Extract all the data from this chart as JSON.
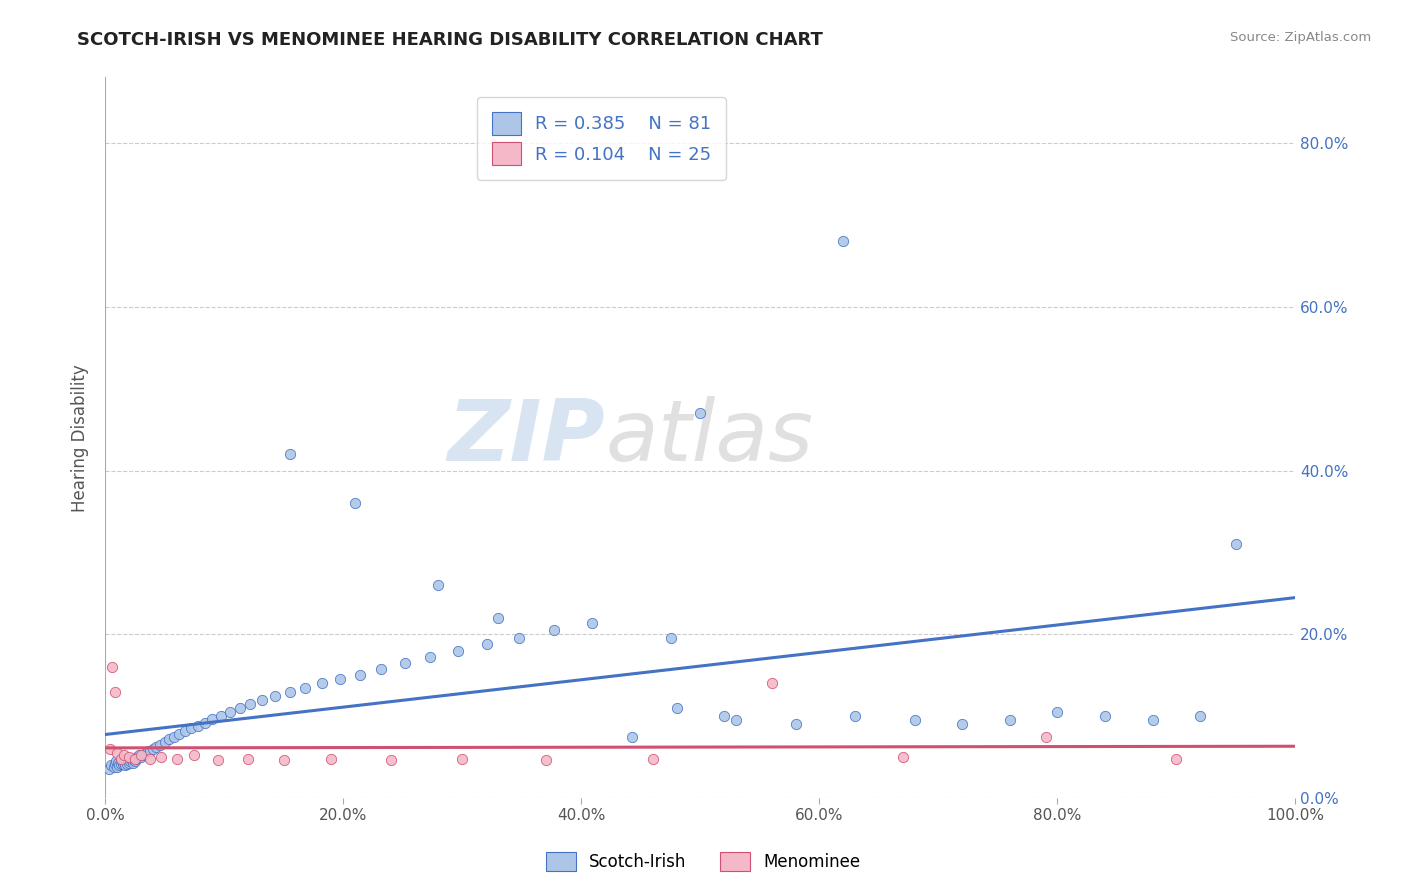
{
  "title": "SCOTCH-IRISH VS MENOMINEE HEARING DISABILITY CORRELATION CHART",
  "source": "Source: ZipAtlas.com",
  "ylabel": "Hearing Disability",
  "xlim": [
    0.0,
    1.0
  ],
  "ylim": [
    0.0,
    0.88
  ],
  "yticks": [
    0.0,
    0.2,
    0.4,
    0.6,
    0.8
  ],
  "ytick_labels_right": [
    "0.0%",
    "20.0%",
    "40.0%",
    "60.0%",
    "80.0%"
  ],
  "xticks": [
    0.0,
    0.2,
    0.4,
    0.6,
    0.8,
    1.0
  ],
  "xtick_labels": [
    "0.0%",
    "20.0%",
    "40.0%",
    "60.0%",
    "80.0%",
    "100.0%"
  ],
  "scotch_irish_color": "#adc6e8",
  "scotch_irish_edge_color": "#4472c4",
  "scotch_irish_line_color": "#4472c4",
  "menominee_color": "#f4b8c8",
  "menominee_edge_color": "#d05070",
  "menominee_line_color": "#d05070",
  "scotch_irish_R": 0.385,
  "scotch_irish_N": 81,
  "menominee_R": 0.104,
  "menominee_N": 25,
  "watermark_zip": "ZIP",
  "watermark_atlas": "atlas",
  "background_color": "#ffffff",
  "grid_color": "#cccccc",
  "title_color": "#222222",
  "source_color": "#888888",
  "right_axis_color": "#4472c4",
  "ylabel_color": "#555555",
  "xtick_color": "#555555",
  "legend_label_color": "#4472c4",
  "bottom_legend_labels": [
    "Scotch-Irish",
    "Menominee"
  ],
  "si_x": [
    0.003,
    0.005,
    0.007,
    0.008,
    0.009,
    0.01,
    0.011,
    0.012,
    0.013,
    0.014,
    0.015,
    0.016,
    0.017,
    0.018,
    0.019,
    0.02,
    0.021,
    0.022,
    0.023,
    0.024,
    0.025,
    0.026,
    0.027,
    0.028,
    0.03,
    0.032,
    0.034,
    0.036,
    0.038,
    0.04,
    0.043,
    0.046,
    0.05,
    0.054,
    0.058,
    0.062,
    0.067,
    0.072,
    0.078,
    0.084,
    0.09,
    0.097,
    0.105,
    0.113,
    0.122,
    0.132,
    0.143,
    0.155,
    0.168,
    0.182,
    0.197,
    0.214,
    0.232,
    0.252,
    0.273,
    0.296,
    0.321,
    0.348,
    0.377,
    0.409,
    0.443,
    0.48,
    0.52,
    0.475,
    0.53,
    0.58,
    0.63,
    0.68,
    0.72,
    0.76,
    0.8,
    0.84,
    0.88,
    0.92,
    0.95,
    0.155,
    0.21,
    0.28,
    0.33,
    0.62,
    0.5
  ],
  "si_y": [
    0.035,
    0.04,
    0.038,
    0.042,
    0.045,
    0.038,
    0.043,
    0.04,
    0.042,
    0.045,
    0.041,
    0.044,
    0.04,
    0.042,
    0.046,
    0.043,
    0.045,
    0.048,
    0.043,
    0.046,
    0.045,
    0.048,
    0.05,
    0.052,
    0.05,
    0.052,
    0.055,
    0.057,
    0.058,
    0.06,
    0.062,
    0.065,
    0.068,
    0.072,
    0.075,
    0.078,
    0.082,
    0.085,
    0.088,
    0.092,
    0.096,
    0.1,
    0.105,
    0.11,
    0.115,
    0.12,
    0.125,
    0.13,
    0.135,
    0.14,
    0.145,
    0.15,
    0.158,
    0.165,
    0.172,
    0.18,
    0.188,
    0.196,
    0.205,
    0.214,
    0.075,
    0.11,
    0.1,
    0.195,
    0.095,
    0.09,
    0.1,
    0.095,
    0.09,
    0.095,
    0.105,
    0.1,
    0.095,
    0.1,
    0.31,
    0.42,
    0.36,
    0.26,
    0.22,
    0.68,
    0.47
  ],
  "men_x": [
    0.004,
    0.006,
    0.008,
    0.01,
    0.013,
    0.016,
    0.02,
    0.025,
    0.03,
    0.038,
    0.047,
    0.06,
    0.075,
    0.095,
    0.12,
    0.15,
    0.19,
    0.24,
    0.3,
    0.37,
    0.46,
    0.56,
    0.67,
    0.79,
    0.9
  ],
  "men_y": [
    0.06,
    0.16,
    0.13,
    0.055,
    0.048,
    0.052,
    0.05,
    0.048,
    0.052,
    0.048,
    0.05,
    0.048,
    0.052,
    0.046,
    0.048,
    0.046,
    0.048,
    0.046,
    0.048,
    0.046,
    0.048,
    0.14,
    0.05,
    0.075,
    0.048
  ]
}
